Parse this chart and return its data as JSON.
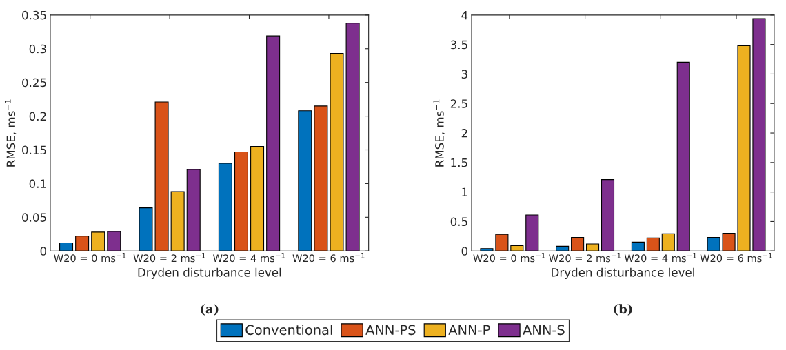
{
  "chart_data": [
    {
      "type": "bar",
      "title": "(a)",
      "xlabel": "Dryden disturbance level",
      "ylabel": "RMSE, ms$^{−1}$",
      "categories": [
        "W20 = 0 ms$^{−1}$",
        "W20 = 2 ms$^{−1}$",
        "W20 = 4 ms$^{−1}$",
        "W20 = 6 ms$^{−1}$"
      ],
      "series": [
        {
          "name": "Conventional",
          "color": "#0072bd",
          "values": [
            0.012,
            0.064,
            0.13,
            0.208
          ]
        },
        {
          "name": "ANN-PS",
          "color": "#d95319",
          "values": [
            0.022,
            0.221,
            0.147,
            0.215
          ]
        },
        {
          "name": "ANN-P",
          "color": "#edb120",
          "values": [
            0.028,
            0.088,
            0.155,
            0.293
          ]
        },
        {
          "name": "ANN-S",
          "color": "#7e2f8e",
          "values": [
            0.029,
            0.121,
            0.319,
            0.338
          ]
        }
      ],
      "ylim": [
        0,
        0.35
      ],
      "yticks": [
        0,
        0.05,
        0.1,
        0.15,
        0.2,
        0.25,
        0.3,
        0.35
      ],
      "grid": false,
      "legend": "bottom"
    },
    {
      "type": "bar",
      "title": "(b)",
      "xlabel": "Dryden disturbance level",
      "ylabel": "RMSE, ms$^{−1}$",
      "categories": [
        "W20 = 0 ms$^{−1}$",
        "W20 = 2 ms$^{−1}$",
        "W20 = 4 ms$^{−1}$",
        "W20 = 6 ms$^{−1}$"
      ],
      "series": [
        {
          "color": "#0072bd",
          "values": [
            0.04,
            0.08,
            0.15,
            0.23
          ]
        },
        {
          "color": "#d95319",
          "values": [
            0.28,
            0.23,
            0.22,
            0.3
          ]
        },
        {
          "color": "#edb120",
          "values": [
            0.09,
            0.12,
            0.29,
            3.48
          ]
        },
        {
          "color": "#7e2f8e",
          "values": [
            0.61,
            1.21,
            3.2,
            3.94
          ]
        }
      ],
      "ylim": [
        0,
        4
      ],
      "yticks": [
        0,
        0.5,
        1,
        1.5,
        2,
        2.5,
        3,
        3.5,
        4
      ],
      "grid": false
    }
  ]
}
